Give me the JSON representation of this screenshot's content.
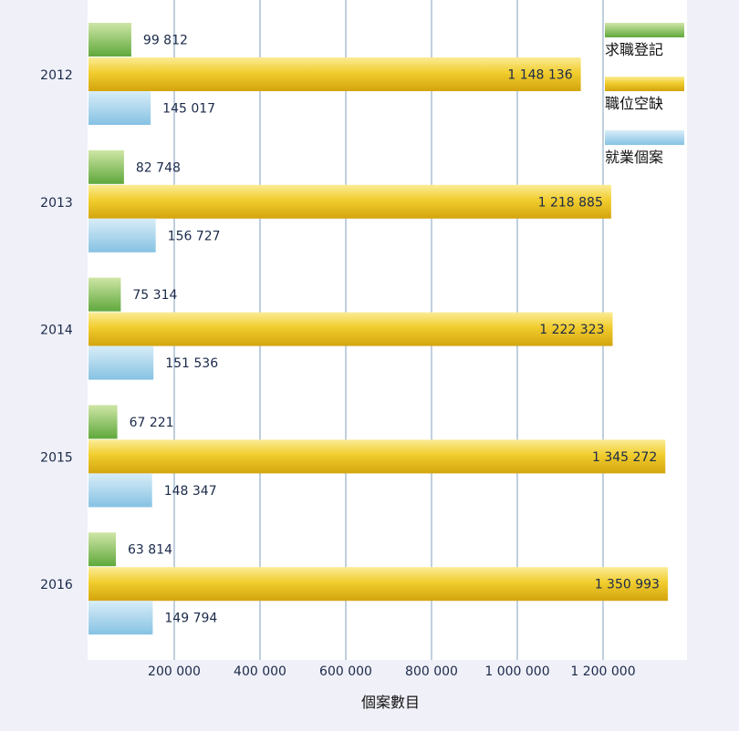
{
  "chart_data": {
    "type": "bar",
    "orientation": "horizontal",
    "categories": [
      "2012",
      "2013",
      "2014",
      "2015",
      "2016"
    ],
    "series": [
      {
        "name": "求職登記",
        "values": [
          99812,
          82748,
          75314,
          67221,
          63814
        ],
        "labels": [
          "99 812",
          "82 748",
          "75 314",
          "67 221",
          "63 814"
        ],
        "color": "#6fb24a"
      },
      {
        "name": "職位空缺",
        "values": [
          1148136,
          1218885,
          1222323,
          1345272,
          1350993
        ],
        "labels": [
          "1 148 136",
          "1 218 885",
          "1 222 323",
          "1 345 272",
          "1 350 993"
        ],
        "color": "#e3b817"
      },
      {
        "name": "就業個案",
        "values": [
          145017,
          156727,
          151536,
          148347,
          149794
        ],
        "labels": [
          "145 017",
          "156 727",
          "151 536",
          "148 347",
          "149 794"
        ],
        "color": "#8ec8e6"
      }
    ],
    "xlabel": "個案數目",
    "xlim": [
      0,
      1400000
    ],
    "xticks": [
      {
        "value": 200000,
        "label": "200 000"
      },
      {
        "value": 400000,
        "label": "400 000"
      },
      {
        "value": 600000,
        "label": "600 000"
      },
      {
        "value": 800000,
        "label": "800 000"
      },
      {
        "value": 1000000,
        "label": "1 000 000"
      },
      {
        "value": 1200000,
        "label": "1 200 000"
      }
    ],
    "grid": true,
    "legend_position": "top-right"
  }
}
